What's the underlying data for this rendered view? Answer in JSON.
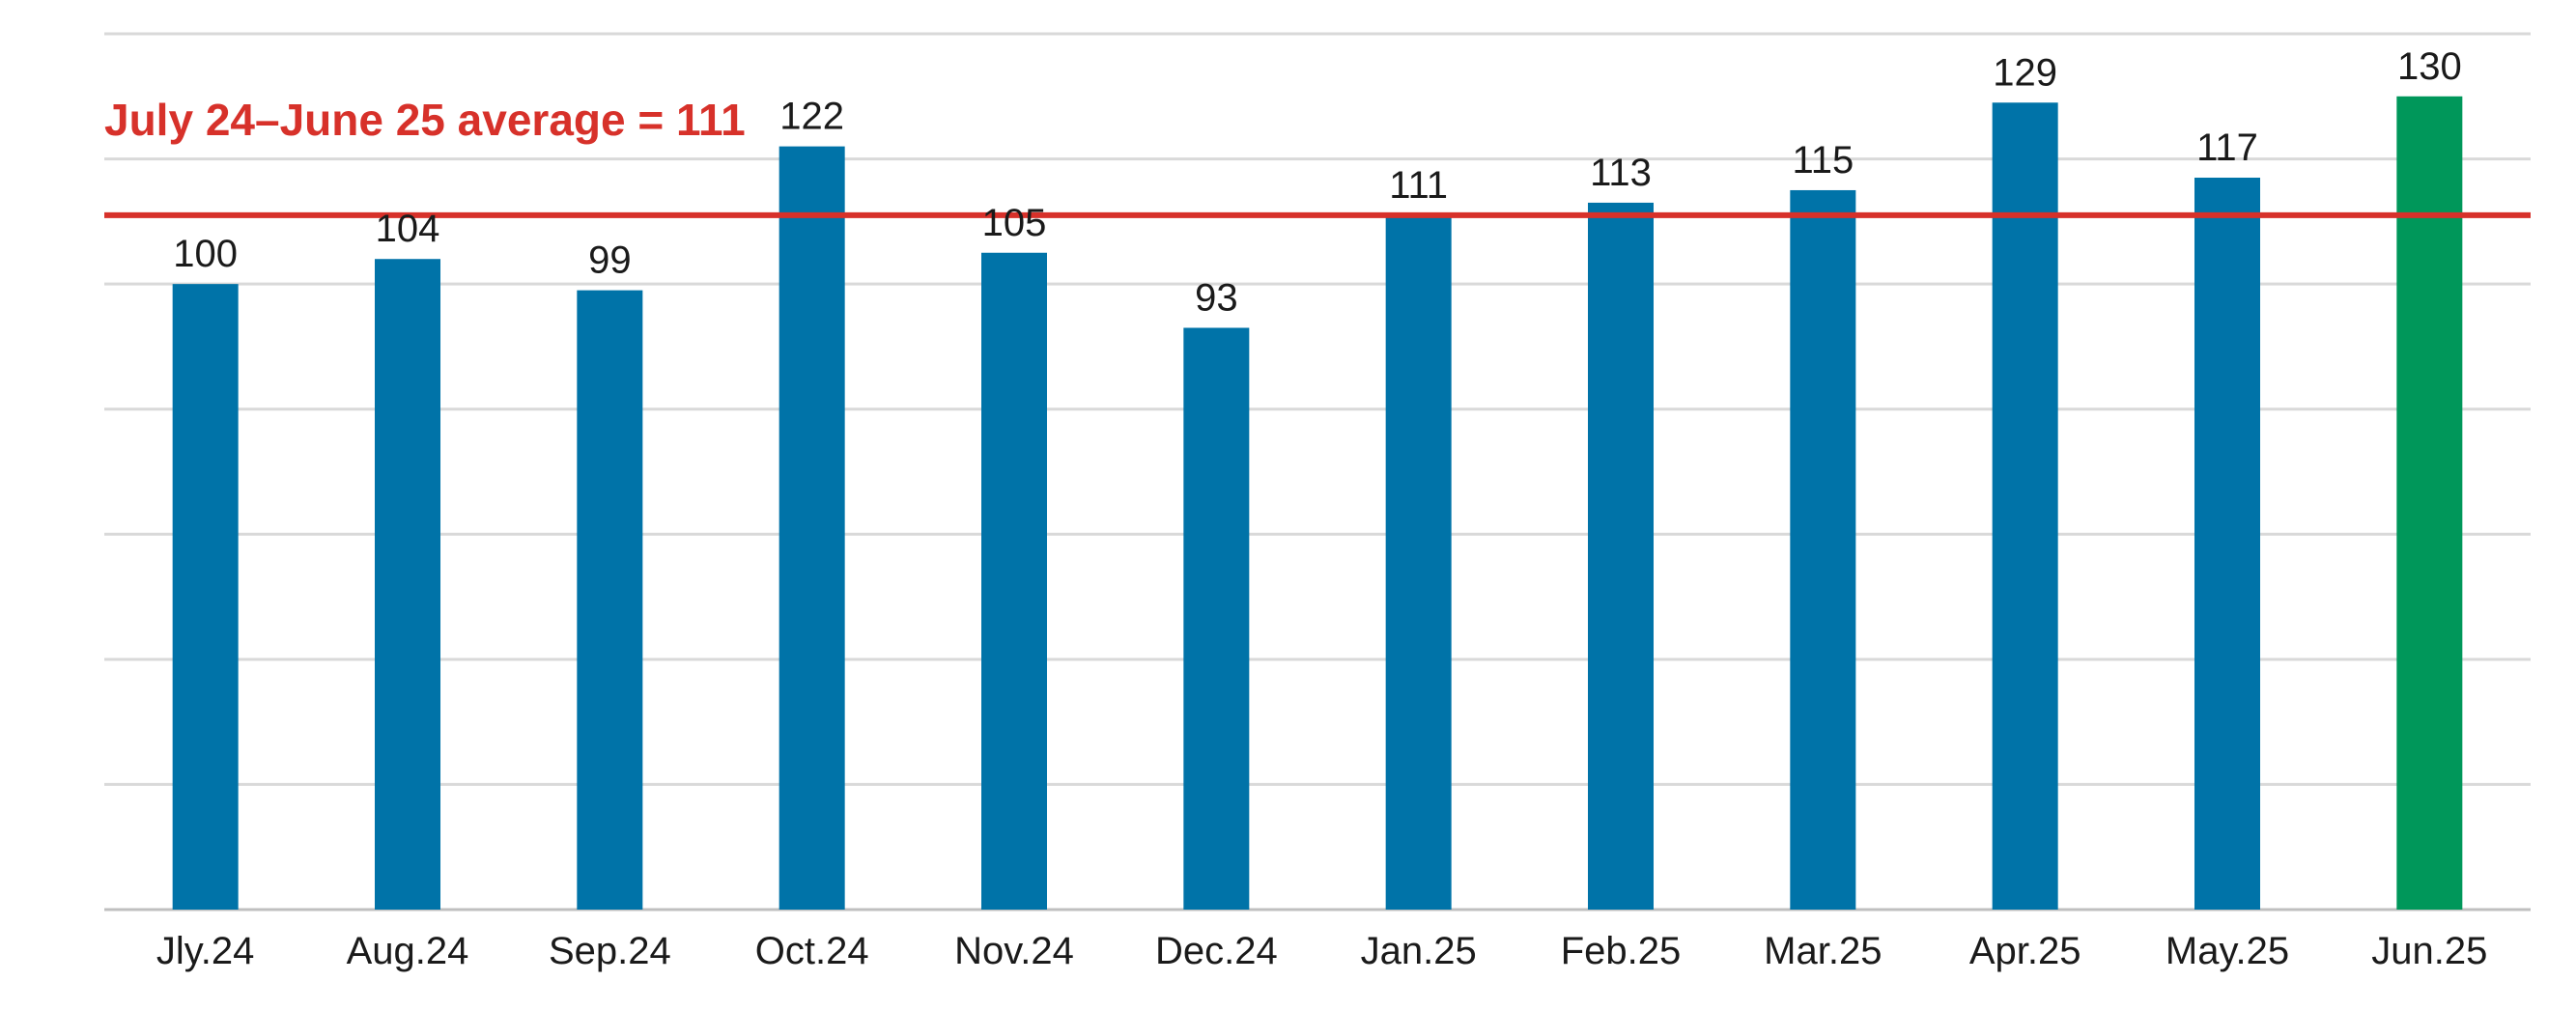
{
  "chart_data": {
    "type": "bar",
    "categories": [
      "Jly.24",
      "Aug.24",
      "Sep.24",
      "Oct.24",
      "Nov.24",
      "Dec.24",
      "Jan.25",
      "Feb.25",
      "Mar.25",
      "Apr.25",
      "May.25",
      "Jun.25"
    ],
    "values": [
      100,
      104,
      99,
      122,
      105,
      93,
      111,
      113,
      115,
      129,
      117,
      130
    ],
    "value_labels": [
      "100",
      "104",
      "99",
      "122",
      "105",
      "93",
      "111",
      "113",
      "115",
      "129",
      "117",
      "130"
    ],
    "ylim": [
      0,
      140
    ],
    "grid_step": 20,
    "grid": true,
    "legend": false,
    "average": {
      "value": 111,
      "label": "July 24–June 25 average = 111"
    },
    "colors": {
      "bar": "#0073A8",
      "highlight_bar": "#00975A",
      "average_line": "#D7312A",
      "grid": "#D9D9D9",
      "axis": "#BFBFBF"
    },
    "highlight_index": 11
  }
}
